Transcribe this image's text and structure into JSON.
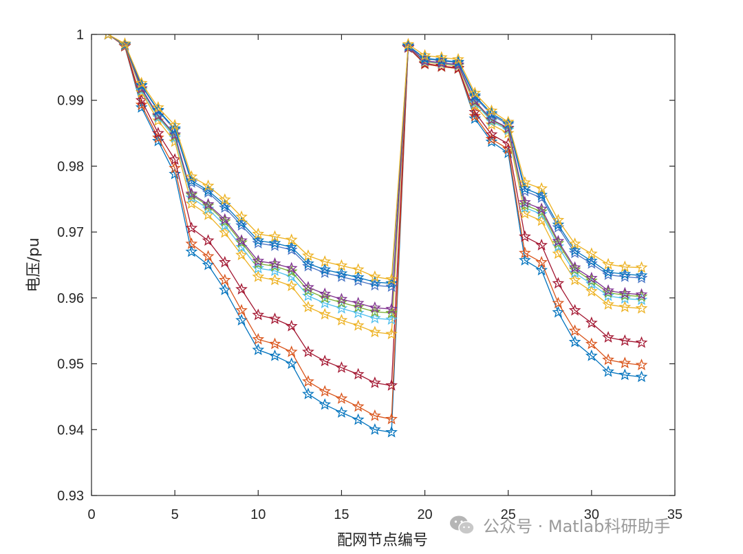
{
  "chart_data": {
    "type": "line",
    "title": "",
    "xlabel": "配网节点编号",
    "ylabel": "电压/pu",
    "xlim": [
      0,
      35
    ],
    "ylim": [
      0.93,
      1.0
    ],
    "xticks": [
      0,
      5,
      10,
      15,
      20,
      25,
      30,
      35
    ],
    "xtick_labels": [
      "0",
      "5",
      "10",
      "15",
      "20",
      "25",
      "30",
      "35"
    ],
    "yticks": [
      0.93,
      0.94,
      0.95,
      0.96,
      0.97,
      0.98,
      0.99,
      1.0
    ],
    "ytick_labels": [
      "0.93",
      "0.94",
      "0.95",
      "0.96",
      "0.97",
      "0.98",
      "0.99",
      "1"
    ],
    "grid": false,
    "marker": "star",
    "x": [
      1,
      2,
      3,
      4,
      5,
      6,
      7,
      8,
      9,
      10,
      11,
      12,
      13,
      14,
      15,
      16,
      17,
      18,
      19,
      20,
      21,
      22,
      23,
      24,
      25,
      26,
      27,
      28,
      29,
      30,
      31,
      32,
      33
    ],
    "series": [
      {
        "name": "series-1",
        "color": "#0072BD",
        "values": [
          1.0,
          0.9982,
          0.9889,
          0.9838,
          0.9788,
          0.967,
          0.965,
          0.9612,
          0.9566,
          0.9521,
          0.9512,
          0.95,
          0.9454,
          0.9438,
          0.9426,
          0.9415,
          0.94,
          0.9396,
          0.998,
          0.9955,
          0.9951,
          0.9948,
          0.9872,
          0.9837,
          0.982,
          0.9657,
          0.9642,
          0.9578,
          0.9533,
          0.9512,
          0.9488,
          0.9483,
          0.948
        ]
      },
      {
        "name": "series-2",
        "color": "#D95319",
        "values": [
          1.0,
          0.9982,
          0.9893,
          0.9843,
          0.9797,
          0.9682,
          0.9663,
          0.9627,
          0.9581,
          0.9537,
          0.953,
          0.9518,
          0.9473,
          0.9458,
          0.9447,
          0.9435,
          0.9421,
          0.9416,
          0.998,
          0.9955,
          0.9951,
          0.9948,
          0.9876,
          0.9841,
          0.9826,
          0.9668,
          0.9654,
          0.9592,
          0.955,
          0.953,
          0.9506,
          0.9501,
          0.9498
        ]
      },
      {
        "name": "series-3",
        "color": "#A2142F",
        "values": [
          1.0,
          0.9982,
          0.99,
          0.985,
          0.981,
          0.9706,
          0.9687,
          0.9654,
          0.9613,
          0.9574,
          0.9568,
          0.9557,
          0.9518,
          0.9504,
          0.9494,
          0.9484,
          0.9471,
          0.9467,
          0.998,
          0.9956,
          0.9952,
          0.9949,
          0.9882,
          0.9848,
          0.9834,
          0.9693,
          0.968,
          0.9622,
          0.9581,
          0.9562,
          0.954,
          0.9535,
          0.9532
        ]
      },
      {
        "name": "series-4",
        "color": "#EDB120",
        "values": [
          1.0,
          0.9983,
          0.9912,
          0.9869,
          0.9837,
          0.9743,
          0.9726,
          0.9699,
          0.9665,
          0.9632,
          0.9627,
          0.9618,
          0.9586,
          0.9575,
          0.9566,
          0.9558,
          0.9548,
          0.9545,
          0.9981,
          0.9958,
          0.9955,
          0.9952,
          0.9892,
          0.9863,
          0.985,
          0.9728,
          0.9717,
          0.9667,
          0.9627,
          0.961,
          0.959,
          0.9586,
          0.9584
        ]
      },
      {
        "name": "series-5",
        "color": "#4DBEEE",
        "values": [
          1.0,
          0.9984,
          0.9915,
          0.9874,
          0.9843,
          0.9752,
          0.9735,
          0.971,
          0.9677,
          0.9645,
          0.9641,
          0.9632,
          0.9603,
          0.9592,
          0.9584,
          0.9577,
          0.9569,
          0.9567,
          0.9981,
          0.9959,
          0.9956,
          0.9953,
          0.9896,
          0.9868,
          0.9855,
          0.9737,
          0.9727,
          0.9678,
          0.9638,
          0.9621,
          0.9603,
          0.9599,
          0.9597
        ]
      },
      {
        "name": "series-6",
        "color": "#77AC30",
        "values": [
          1.0,
          0.9984,
          0.9917,
          0.9876,
          0.9846,
          0.9756,
          0.974,
          0.9716,
          0.9684,
          0.9652,
          0.9648,
          0.964,
          0.9611,
          0.96,
          0.9593,
          0.9586,
          0.9579,
          0.9577,
          0.9981,
          0.996,
          0.9957,
          0.9954,
          0.9898,
          0.987,
          0.9857,
          0.9741,
          0.9731,
          0.9683,
          0.9643,
          0.9626,
          0.9608,
          0.9604,
          0.9602
        ]
      },
      {
        "name": "series-7",
        "color": "#7E2F8E",
        "values": [
          1.0,
          0.9984,
          0.9918,
          0.9877,
          0.9848,
          0.9758,
          0.9742,
          0.9719,
          0.9687,
          0.9656,
          0.9652,
          0.9645,
          0.9616,
          0.9606,
          0.9598,
          0.9592,
          0.9585,
          0.9583,
          0.9981,
          0.996,
          0.9957,
          0.9954,
          0.9899,
          0.9871,
          0.9858,
          0.9745,
          0.9735,
          0.9686,
          0.9646,
          0.963,
          0.9611,
          0.9607,
          0.9605
        ]
      },
      {
        "name": "series-8",
        "color": "#4472C4",
        "values": [
          1.0,
          0.9984,
          0.9922,
          0.9884,
          0.9855,
          0.9775,
          0.976,
          0.9737,
          0.971,
          0.9683,
          0.9679,
          0.9673,
          0.9648,
          0.9638,
          0.9632,
          0.9626,
          0.9619,
          0.9617,
          0.9982,
          0.9963,
          0.996,
          0.9957,
          0.9905,
          0.9878,
          0.9863,
          0.9762,
          0.9752,
          0.9707,
          0.9668,
          0.9652,
          0.9635,
          0.9632,
          0.963
        ]
      },
      {
        "name": "series-9",
        "color": "#0072BD",
        "values": [
          1.0,
          0.9985,
          0.9923,
          0.9885,
          0.9857,
          0.9778,
          0.9763,
          0.9741,
          0.9714,
          0.9687,
          0.9683,
          0.9677,
          0.9652,
          0.9643,
          0.9637,
          0.9631,
          0.9624,
          0.9622,
          0.9983,
          0.9964,
          0.9961,
          0.9958,
          0.9907,
          0.988,
          0.9865,
          0.9766,
          0.9756,
          0.9711,
          0.9672,
          0.9656,
          0.9639,
          0.9636,
          0.9634
        ]
      },
      {
        "name": "series-10",
        "color": "#EDB120",
        "values": [
          1.0,
          0.9986,
          0.9926,
          0.9889,
          0.9862,
          0.9784,
          0.977,
          0.9749,
          0.9723,
          0.9697,
          0.9693,
          0.9688,
          0.9664,
          0.9655,
          0.9649,
          0.9643,
          0.9632,
          0.9628,
          0.9985,
          0.9968,
          0.9965,
          0.9962,
          0.9911,
          0.9884,
          0.9867,
          0.9775,
          0.9766,
          0.9718,
          0.9682,
          0.9667,
          0.9651,
          0.9647,
          0.9646
        ]
      }
    ]
  },
  "watermark": {
    "icon": "wechat-icon",
    "text": "公众号 · Matlab科研助手"
  }
}
